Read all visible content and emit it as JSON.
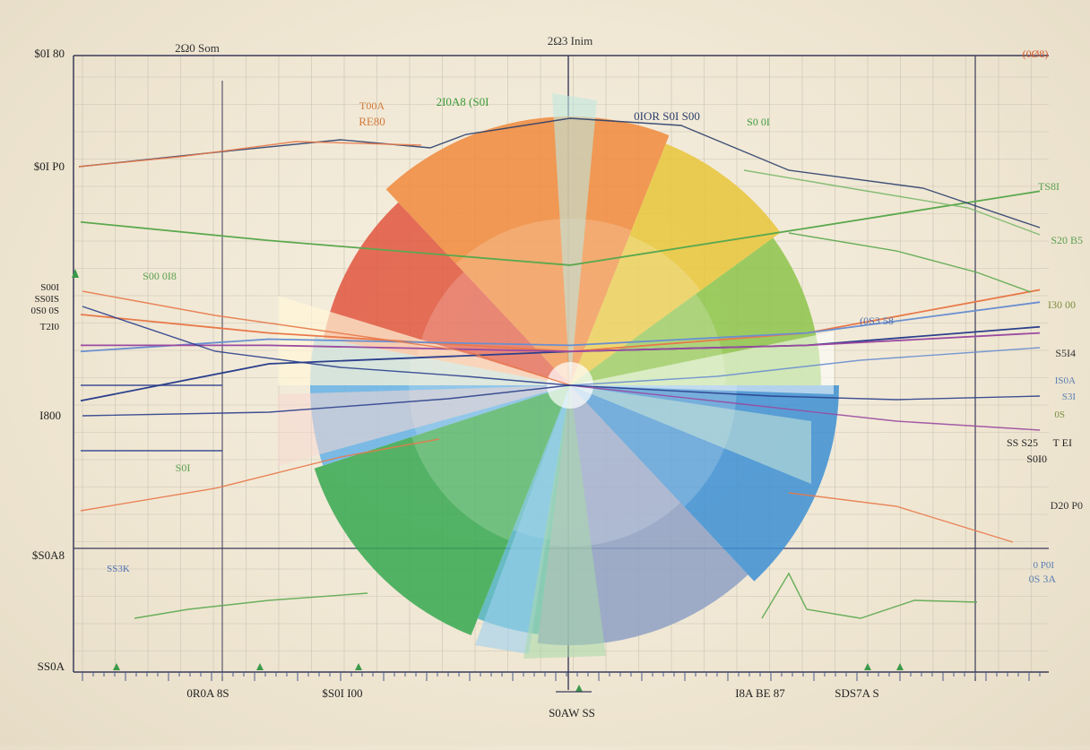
{
  "chart_data": {
    "type": "pie",
    "title": "2Ω3 Inim",
    "top_labels": [
      "2Ω0 Som",
      "(0Ø8)"
    ],
    "left_axis_labels": [
      "$0I 80",
      "$0I P0",
      "S00I",
      "SS0IS",
      "0S0 0S",
      "T2I0",
      "I800",
      "$S0A8",
      "SS0A"
    ],
    "right_axis_labels": [
      "TS8I",
      "S20 B5",
      "I30 00",
      "S5I4",
      "IS0A",
      "S3I",
      "0S",
      "SS S25",
      "T EI",
      "S0I0",
      "D20 P0",
      "0 P0I",
      "0S 3A"
    ],
    "bottom_labels": [
      "0R0A 8S",
      "$S0I I00",
      "S0AW SS",
      "I8A BE 87",
      "SDS7A S"
    ],
    "callouts": [
      "T00A",
      "RE80",
      "2I0A8 (S0I",
      "0IOR S0I S00",
      "S0 0I",
      "S00 0I8",
      "(0S3 58",
      "S0I",
      "SS3K"
    ],
    "slices": [
      {
        "label": "orange",
        "value": 18,
        "color": "#f08a3c"
      },
      {
        "label": "yellow",
        "value": 9,
        "color": "#e8c63a"
      },
      {
        "label": "light-green",
        "value": 10,
        "color": "#8cc44a"
      },
      {
        "label": "blue",
        "value": 13,
        "color": "#3c8fd4"
      },
      {
        "label": "slate",
        "value": 14,
        "color": "#8ea0c4"
      },
      {
        "label": "teal",
        "value": 4,
        "color": "#4fb3c0"
      },
      {
        "label": "green",
        "value": 14,
        "color": "#36a850"
      },
      {
        "label": "sky",
        "value": 8,
        "color": "#64b2e6"
      },
      {
        "label": "red",
        "value": 10,
        "color": "#e0563e"
      }
    ],
    "series": [
      {
        "color": "#2b3f8c",
        "values": [
          0.44,
          0.5,
          0.52,
          0.53,
          0.56
        ]
      },
      {
        "color": "#e8794a",
        "values": [
          0.58,
          0.55,
          0.52,
          0.55,
          0.62
        ]
      },
      {
        "color": "#5ba84e",
        "values": [
          0.73,
          0.7,
          0.66,
          0.72,
          0.78
        ]
      },
      {
        "color": "#6a8fd0",
        "values": [
          0.52,
          0.54,
          0.53,
          0.55,
          0.6
        ]
      },
      {
        "color": "#9a4aa0",
        "values": [
          0.53,
          0.53,
          0.52,
          0.53,
          0.55
        ]
      }
    ],
    "grid": true
  }
}
